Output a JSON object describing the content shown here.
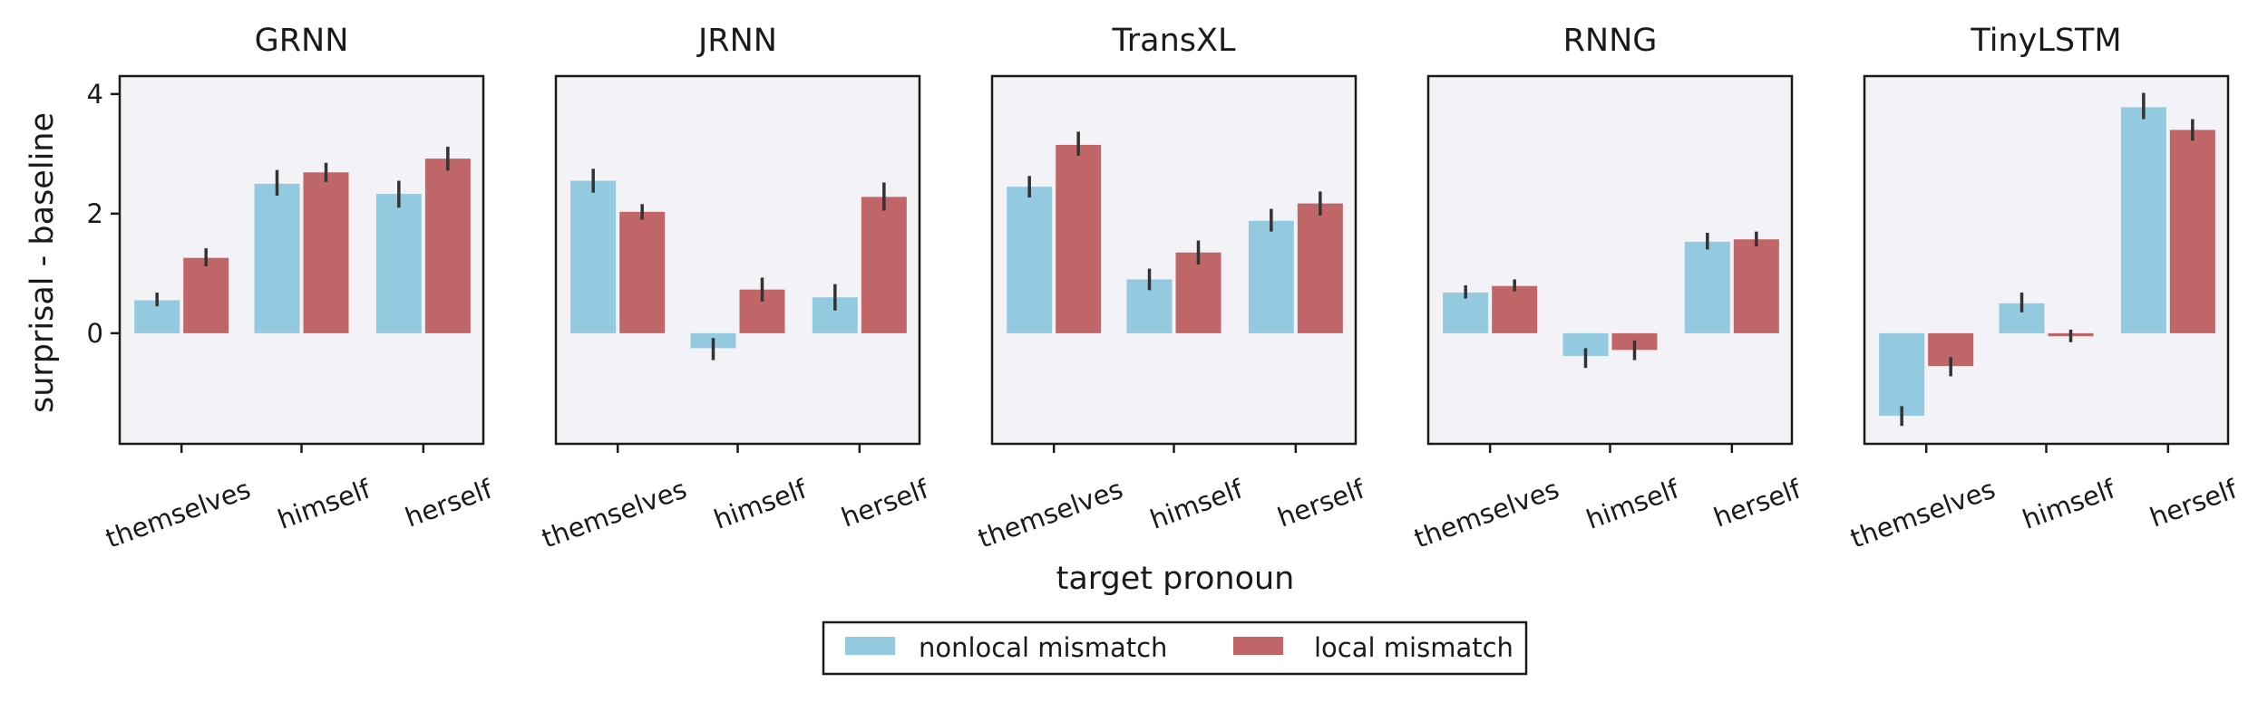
{
  "chart_data": {
    "type": "bar",
    "ylabel": "surprisal - baseline",
    "xlabel": "target pronoun",
    "categories": [
      "themselves",
      "himself",
      "herself"
    ],
    "yticks": [
      0,
      2,
      4
    ],
    "ylim": [
      -1.85,
      4.3
    ],
    "grid": false,
    "legend": {
      "placement": "bottom-center",
      "entries": [
        {
          "name": "nonlocal mismatch",
          "color": "#93cae0"
        },
        {
          "name": "local mismatch",
          "color": "#c16668"
        }
      ]
    },
    "colors": {
      "nonlocal": "#93cae0",
      "local": "#c16668",
      "panel_bg": "#f3f2f6",
      "error_bar": "#333333"
    },
    "panels": [
      {
        "title": "GRNN",
        "series": [
          {
            "name": "nonlocal mismatch",
            "values": [
              0.55,
              2.5,
              2.33
            ],
            "errors": [
              [
                0.45,
                0.68
              ],
              [
                2.3,
                2.73
              ],
              [
                2.1,
                2.55
              ]
            ]
          },
          {
            "name": "local mismatch",
            "values": [
              1.26,
              2.69,
              2.92
            ],
            "errors": [
              [
                1.12,
                1.42
              ],
              [
                2.53,
                2.85
              ],
              [
                2.72,
                3.12
              ]
            ]
          }
        ]
      },
      {
        "title": "JRNN",
        "series": [
          {
            "name": "nonlocal mismatch",
            "values": [
              2.55,
              -0.25,
              0.6
            ],
            "errors": [
              [
                2.35,
                2.75
              ],
              [
                -0.45,
                -0.08
              ],
              [
                0.38,
                0.82
              ]
            ]
          },
          {
            "name": "local mismatch",
            "values": [
              2.03,
              0.73,
              2.28
            ],
            "errors": [
              [
                1.9,
                2.16
              ],
              [
                0.53,
                0.93
              ],
              [
                2.05,
                2.52
              ]
            ]
          }
        ]
      },
      {
        "title": "TransXL",
        "series": [
          {
            "name": "nonlocal mismatch",
            "values": [
              2.45,
              0.9,
              1.88
            ],
            "errors": [
              [
                2.27,
                2.63
              ],
              [
                0.72,
                1.08
              ],
              [
                1.7,
                2.08
              ]
            ]
          },
          {
            "name": "local mismatch",
            "values": [
              3.15,
              1.35,
              2.17
            ],
            "errors": [
              [
                2.97,
                3.37
              ],
              [
                1.15,
                1.55
              ],
              [
                1.97,
                2.37
              ]
            ]
          }
        ]
      },
      {
        "title": "RNNG",
        "series": [
          {
            "name": "nonlocal mismatch",
            "values": [
              0.68,
              -0.38,
              1.53
            ],
            "errors": [
              [
                0.58,
                0.8
              ],
              [
                -0.58,
                -0.25
              ],
              [
                1.4,
                1.68
              ]
            ]
          },
          {
            "name": "local mismatch",
            "values": [
              0.79,
              -0.28,
              1.57
            ],
            "errors": [
              [
                0.7,
                0.9
              ],
              [
                -0.45,
                -0.12
              ],
              [
                1.45,
                1.7
              ]
            ]
          }
        ]
      },
      {
        "title": "TinyLSTM",
        "series": [
          {
            "name": "nonlocal mismatch",
            "values": [
              -1.38,
              0.5,
              3.78
            ],
            "errors": [
              [
                -1.55,
                -1.22
              ],
              [
                0.35,
                0.68
              ],
              [
                3.58,
                4.02
              ]
            ]
          },
          {
            "name": "local mismatch",
            "values": [
              -0.55,
              -0.05,
              3.4
            ],
            "errors": [
              [
                -0.72,
                -0.4
              ],
              [
                -0.15,
                0.06
              ],
              [
                3.22,
                3.58
              ]
            ]
          }
        ]
      }
    ]
  }
}
